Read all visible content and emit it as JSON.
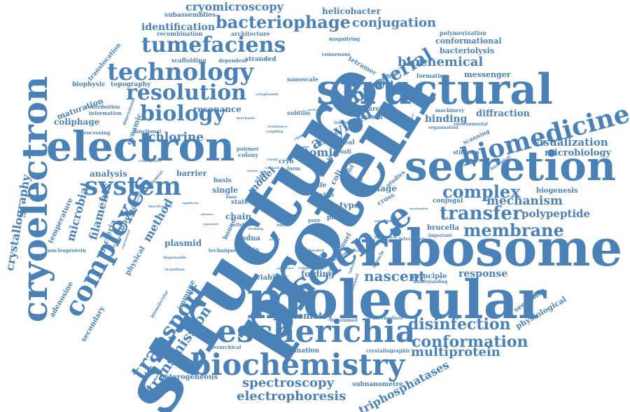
{
  "color": "#4a82b8",
  "words": [
    {
      "text": "structure",
      "weight": 100,
      "orientation": "rotated"
    },
    {
      "text": "protein",
      "weight": 98,
      "orientation": "rotated"
    },
    {
      "text": "molecular",
      "weight": 88,
      "orientation": "horizontal"
    },
    {
      "text": "ribosome",
      "weight": 84,
      "orientation": "horizontal"
    },
    {
      "text": "structural",
      "weight": 70,
      "orientation": "horizontal"
    },
    {
      "text": "secretion",
      "weight": 68,
      "orientation": "horizontal"
    },
    {
      "text": "electron",
      "weight": 66,
      "orientation": "horizontal"
    },
    {
      "text": "science",
      "weight": 62,
      "orientation": "rotated"
    },
    {
      "text": "cryoelectron",
      "weight": 60,
      "orientation": "vertical"
    },
    {
      "text": "escherichia",
      "weight": 52,
      "orientation": "horizontal"
    },
    {
      "text": "biochemistry",
      "weight": 50,
      "orientation": "horizontal"
    },
    {
      "text": "biomedicine",
      "weight": 46,
      "orientation": "rotated"
    },
    {
      "text": "complexes",
      "weight": 44,
      "orientation": "rotated"
    },
    {
      "text": "system",
      "weight": 42,
      "orientation": "horizontal"
    },
    {
      "text": "technology",
      "weight": 40,
      "orientation": "horizontal"
    },
    {
      "text": "tumefaciens",
      "weight": 36,
      "orientation": "horizontal"
    },
    {
      "text": "resolution",
      "weight": 36,
      "orientation": "horizontal"
    },
    {
      "text": "transport",
      "weight": 34,
      "orientation": "rotated"
    },
    {
      "text": "biology",
      "weight": 34,
      "orientation": "horizontal"
    },
    {
      "text": "bacteriophage",
      "weight": 30,
      "orientation": "horizontal"
    },
    {
      "text": "transfer",
      "weight": 30,
      "orientation": "horizontal"
    },
    {
      "text": "membrane",
      "weight": 28,
      "orientation": "horizontal"
    },
    {
      "text": "bacterial",
      "weight": 28,
      "orientation": "rotated"
    },
    {
      "text": "complex",
      "weight": 26,
      "orientation": "horizontal"
    },
    {
      "text": "amyloid",
      "weight": 24,
      "orientation": "rotated"
    },
    {
      "text": "conformation",
      "weight": 24,
      "orientation": "horizontal"
    },
    {
      "text": "disinfection",
      "weight": 22,
      "orientation": "horizontal"
    },
    {
      "text": "nascent",
      "weight": 22,
      "orientation": "horizontal"
    },
    {
      "text": "transmission",
      "weight": 22,
      "orientation": "rotated"
    },
    {
      "text": "spectroscopy",
      "weight": 20,
      "orientation": "horizontal"
    },
    {
      "text": "electrophoresis",
      "weight": 20,
      "orientation": "horizontal"
    },
    {
      "text": "multiprotein",
      "weight": 20,
      "orientation": "horizontal"
    },
    {
      "text": "biochemical",
      "weight": 20,
      "orientation": "horizontal"
    },
    {
      "text": "conjugation",
      "weight": 20,
      "orientation": "horizontal"
    },
    {
      "text": "cryomicroscopy",
      "weight": 18,
      "orientation": "horizontal"
    },
    {
      "text": "chlorine",
      "weight": 18,
      "orientation": "horizontal"
    },
    {
      "text": "mechanism",
      "weight": 18,
      "orientation": "horizontal"
    },
    {
      "text": "polypeptide",
      "weight": 16,
      "orientation": "horizontal"
    },
    {
      "text": "visualization",
      "weight": 16,
      "orientation": "horizontal"
    },
    {
      "text": "microbiology",
      "weight": 14,
      "orientation": "horizontal"
    },
    {
      "text": "diffraction",
      "weight": 14,
      "orientation": "horizontal"
    },
    {
      "text": "binding",
      "weight": 14,
      "orientation": "horizontal"
    },
    {
      "text": "identification",
      "weight": 14,
      "orientation": "horizontal"
    },
    {
      "text": "cytometry",
      "weight": 14,
      "orientation": "horizontal"
    },
    {
      "text": "response",
      "weight": 14,
      "orientation": "horizontal"
    },
    {
      "text": "method",
      "weight": 16,
      "orientation": "rotated"
    },
    {
      "text": "filaments",
      "weight": 16,
      "orientation": "rotated"
    },
    {
      "text": "microbial",
      "weight": 16,
      "orientation": "rotated"
    },
    {
      "text": "crystallography",
      "weight": 16,
      "orientation": "vertical"
    },
    {
      "text": "atomic",
      "weight": 16,
      "orientation": "horizontal"
    },
    {
      "text": "triphosphatases",
      "weight": 16,
      "orientation": "rotated"
    },
    {
      "text": "heterogeneous",
      "weight": 10,
      "orientation": "horizontal"
    },
    {
      "text": "helicobacter",
      "weight": 12,
      "orientation": "horizontal"
    },
    {
      "text": "conformational",
      "weight": 11,
      "orientation": "horizontal"
    },
    {
      "text": "bacteriolysis",
      "weight": 11,
      "orientation": "horizontal"
    },
    {
      "text": "messenger",
      "weight": 11,
      "orientation": "horizontal"
    },
    {
      "text": "biogenesis",
      "weight": 10,
      "orientation": "horizontal"
    },
    {
      "text": "brucella",
      "weight": 10,
      "orientation": "horizontal"
    },
    {
      "text": "coliphage",
      "weight": 12,
      "orientation": "horizontal"
    },
    {
      "text": "maturation",
      "weight": 12,
      "orientation": "rotated"
    },
    {
      "text": "resonance",
      "weight": 12,
      "orientation": "horizontal"
    },
    {
      "text": "analysis",
      "weight": 12,
      "orientation": "horizontal"
    },
    {
      "text": "barrier",
      "weight": 11,
      "orientation": "horizontal"
    },
    {
      "text": "plasmid",
      "weight": 12,
      "orientation": "horizontal"
    },
    {
      "text": "folding",
      "weight": 12,
      "orientation": "horizontal"
    },
    {
      "text": "viability",
      "weight": 10,
      "orientation": "horizontal"
    },
    {
      "text": "phage",
      "weight": 12,
      "orientation": "horizontal"
    },
    {
      "text": "type",
      "weight": 12,
      "orientation": "horizontal"
    },
    {
      "text": "model",
      "weight": 12,
      "orientation": "rotated"
    },
    {
      "text": "chain",
      "weight": 12,
      "orientation": "horizontal"
    },
    {
      "text": "single",
      "weight": 11,
      "orientation": "horizontal"
    },
    {
      "text": "ssdna",
      "weight": 10,
      "orientation": "horizontal"
    },
    {
      "text": "combination",
      "weight": 9,
      "orientation": "horizontal"
    },
    {
      "text": "subnanometre",
      "weight": 9,
      "orientation": "horizontal"
    },
    {
      "text": "principle",
      "weight": 10,
      "orientation": "horizontal"
    },
    {
      "text": "sequence",
      "weight": 10,
      "orientation": "rotated"
    },
    {
      "text": "physiological",
      "weight": 11,
      "orientation": "rotated"
    },
    {
      "text": "immune",
      "weight": 10,
      "orientation": "rotated"
    },
    {
      "text": "bacteria",
      "weight": 11,
      "orientation": "rotated"
    },
    {
      "text": "nuclear",
      "weight": 11,
      "orientation": "rotated"
    },
    {
      "text": "physical",
      "weight": 10,
      "orientation": "rotated"
    },
    {
      "text": "adenosine",
      "weight": 10,
      "orientation": "rotated"
    },
    {
      "text": "secondary",
      "weight": 10,
      "orientation": "rotated"
    },
    {
      "text": "temperature",
      "weight": 10,
      "orientation": "rotated"
    },
    {
      "text": "dynamic",
      "weight": 10,
      "orientation": "rotated"
    },
    {
      "text": "translocation",
      "weight": 9,
      "orientation": "rotated"
    },
    {
      "text": "tetramer",
      "weight": 9,
      "orientation": "rotated"
    },
    {
      "text": "magnetic",
      "weight": 9,
      "orientation": "rotated"
    },
    {
      "text": "subassemblies",
      "weight": 9,
      "orientation": "horizontal"
    },
    {
      "text": "recombination",
      "weight": 8,
      "orientation": "horizontal"
    },
    {
      "text": "architecture",
      "weight": 8,
      "orientation": "horizontal"
    },
    {
      "text": "scaffolding",
      "weight": 8,
      "orientation": "horizontal"
    },
    {
      "text": "stranded",
      "weight": 9,
      "orientation": "horizontal"
    },
    {
      "text": "nanoscale",
      "weight": 8,
      "orientation": "horizontal"
    },
    {
      "text": "polymerization",
      "weight": 8,
      "orientation": "horizontal"
    },
    {
      "text": "formation",
      "weight": 8,
      "orientation": "horizontal"
    },
    {
      "text": "biophysic",
      "weight": 9,
      "orientation": "horizontal"
    },
    {
      "text": "topography",
      "weight": 9,
      "orientation": "horizontal"
    },
    {
      "text": "research",
      "weight": 9,
      "orientation": "horizontal"
    },
    {
      "text": "cryoem",
      "weight": 9,
      "orientation": "horizontal"
    },
    {
      "text": "human",
      "weight": 9,
      "orientation": "rotated"
    },
    {
      "text": "reveal",
      "weight": 9,
      "orientation": "horizontal"
    },
    {
      "text": "result",
      "weight": 8,
      "orientation": "horizontal"
    },
    {
      "text": "scanning",
      "weight": 8,
      "orientation": "rotated"
    },
    {
      "text": "stiffness",
      "weight": 8,
      "orientation": "horizontal"
    },
    {
      "text": "conjugal",
      "weight": 9,
      "orientation": "horizontal"
    },
    {
      "text": "cycle",
      "weight": 8,
      "orientation": "horizontal"
    },
    {
      "text": "basis",
      "weight": 9,
      "orientation": "horizontal"
    },
    {
      "text": "state",
      "weight": 9,
      "orientation": "horizontal"
    },
    {
      "text": "domain",
      "weight": 8,
      "orientation": "horizontal"
    },
    {
      "text": "presence",
      "weight": 9,
      "orientation": "rotated"
    },
    {
      "text": "tunnel",
      "weight": 9,
      "orientation": "rotated"
    },
    {
      "text": "subtilis",
      "weight": 8,
      "orientation": "horizontal"
    },
    {
      "text": "colony",
      "weight": 8,
      "orientation": "horizontal"
    },
    {
      "text": "polymer",
      "weight": 7,
      "orientation": "horizontal"
    },
    {
      "text": "information",
      "weight": 7,
      "orientation": "horizontal"
    },
    {
      "text": "contribution",
      "weight": 7,
      "orientation": "horizontal"
    },
    {
      "text": "processing",
      "weight": 7,
      "orientation": "horizontal"
    },
    {
      "text": "consensus",
      "weight": 7,
      "orientation": "horizontal"
    },
    {
      "text": "magnifying",
      "weight": 7,
      "orientation": "horizontal"
    },
    {
      "text": "dependent",
      "weight": 7,
      "orientation": "horizontal"
    },
    {
      "text": "machinery",
      "weight": 7,
      "orientation": "horizontal"
    },
    {
      "text": "environmental",
      "weight": 6,
      "orientation": "horizontal"
    },
    {
      "text": "organisation",
      "weight": 6,
      "orientation": "horizontal"
    },
    {
      "text": "functional",
      "weight": 7,
      "orientation": "horizontal"
    },
    {
      "text": "nucleoprotein",
      "weight": 7,
      "orientation": "horizontal"
    },
    {
      "text": "technique",
      "weight": 7,
      "orientation": "horizontal"
    },
    {
      "text": "hierarchical",
      "weight": 7,
      "orientation": "horizontal"
    },
    {
      "text": "crystallographic",
      "weight": 7,
      "orientation": "horizontal"
    },
    {
      "text": "protomers",
      "weight": 7,
      "orientation": "horizontal"
    },
    {
      "text": "intermediate",
      "weight": 6,
      "orientation": "horizontal"
    },
    {
      "text": "understanding",
      "weight": 6,
      "orientation": "horizontal"
    },
    {
      "text": "important",
      "weight": 6,
      "orientation": "horizontal"
    },
    {
      "text": "interaction",
      "weight": 6,
      "orientation": "horizontal"
    },
    {
      "text": "approach",
      "weight": 6,
      "orientation": "horizontal"
    },
    {
      "text": "determined",
      "weight": 6,
      "orientation": "horizontal"
    },
    {
      "text": "pilus",
      "weight": 9,
      "orientation": "horizontal"
    },
    {
      "text": "pore",
      "weight": 7,
      "orientation": "horizontal"
    },
    {
      "text": "fibril",
      "weight": 7,
      "orientation": "horizontal"
    },
    {
      "text": "virb",
      "weight": 9,
      "orientation": "horizontal"
    },
    {
      "text": "life",
      "weight": 9,
      "orientation": "horizontal"
    },
    {
      "text": "cryo",
      "weight": 9,
      "orientation": "horizontal"
    },
    {
      "text": "core",
      "weight": 9,
      "orientation": "rotated"
    },
    {
      "text": "cell",
      "weight": 9,
      "orientation": "rotated"
    },
    {
      "text": "coli",
      "weight": 11,
      "orientation": "rotated"
    },
    {
      "text": "virb",
      "weight": 10,
      "orientation": "rotated"
    },
    {
      "text": "bound",
      "weight": 9,
      "orientation": "rotated"
    },
    {
      "text": "form",
      "weight": 7,
      "orientation": "horizontal"
    },
    {
      "text": "outer",
      "weight": 6,
      "orientation": "horizontal"
    },
    {
      "text": "cross",
      "weight": 9,
      "orientation": "rotated"
    },
    {
      "text": "studies",
      "weight": 8,
      "orientation": "rotated"
    },
    {
      "text": "solid",
      "weight": 8,
      "orientation": "rotated"
    },
    {
      "text": "muscle",
      "weight": 7,
      "orientation": "rotated"
    },
    {
      "text": "channel",
      "weight": 6,
      "orientation": "rotated"
    },
    {
      "text": "centre",
      "weight": 6,
      "orientation": "rotated"
    },
    {
      "text": "treatment",
      "weight": 6,
      "orientation": "horizontal"
    },
    {
      "text": "biological",
      "weight": 6,
      "orientation": "rotated"
    },
    {
      "text": "element",
      "weight": 6,
      "orientation": "rotated"
    },
    {
      "text": "conjugative",
      "weight": 5,
      "orientation": "horizontal"
    },
    {
      "text": "inactivation",
      "weight": 5,
      "orientation": "horizontal"
    },
    {
      "text": "transition",
      "weight": 5,
      "orientation": "horizontal"
    },
    {
      "text": "dispensable",
      "weight": 5,
      "orientation": "horizontal"
    },
    {
      "text": "biomolecular",
      "weight": 6,
      "orientation": "rotated"
    },
    {
      "text": "biocomplexes",
      "weight": 5,
      "orientation": "rotated"
    },
    {
      "text": "dimensional",
      "weight": 6,
      "orientation": "rotated"
    },
    {
      "text": "mechanic",
      "weight": 5,
      "orientation": "horizontal"
    },
    {
      "text": "cytoplasmic",
      "weight": 5,
      "orientation": "horizontal"
    },
    {
      "text": "coupling",
      "weight": 5,
      "orientation": "horizontal"
    },
    {
      "text": "resistance",
      "weight": 5,
      "orientation": "horizontal"
    },
    {
      "text": "count",
      "weight": 5,
      "orientation": "horizontal"
    },
    {
      "text": "contact",
      "weight": 5,
      "orientation": "horizontal"
    },
    {
      "text": "various",
      "weight": 4,
      "orientation": "horizontal"
    },
    {
      "text": "cellular",
      "weight": 6,
      "orientation": "horizontal"
    },
    {
      "text": "looking",
      "weight": 5,
      "orientation": "horizontal"
    },
    {
      "text": "base",
      "weight": 6,
      "orientation": "horizontal"
    },
    {
      "text": "detailed",
      "weight": 5,
      "orientation": "horizontal"
    },
    {
      "text": "sample",
      "weight": 5,
      "orientation": "horizontal"
    },
    {
      "text": "absence",
      "weight": 5,
      "orientation": "horizontal"
    },
    {
      "text": "assemble",
      "weight": 5,
      "orientation": "horizontal"
    },
    {
      "text": "mechanistic",
      "weight": 4,
      "orientation": "horizontal"
    },
    {
      "text": "component",
      "weight": 5,
      "orientation": "horizontal"
    },
    {
      "text": "properties",
      "weight": 4,
      "orientation": "horizontal"
    },
    {
      "text": "significant",
      "weight": 4,
      "orientation": "horizontal"
    },
    {
      "text": "archetypal",
      "weight": 4,
      "orientation": "horizontal"
    },
    {
      "text": "chimeric",
      "weight": 5,
      "orientation": "rotated"
    },
    {
      "text": "flexible",
      "weight": 4,
      "orientation": "horizontal"
    },
    {
      "text": "organized",
      "weight": 4,
      "orientation": "horizontal"
    },
    {
      "text": "advance",
      "weight": 4,
      "orientation": "horizontal"
    },
    {
      "text": "susceptibility",
      "weight": 4,
      "orientation": "rotated"
    },
    {
      "text": "experimental",
      "weight": 4,
      "orientation": "rotated"
    },
    {
      "text": "helical",
      "weight": 4,
      "orientation": "horizontal"
    },
    {
      "text": "exposure",
      "weight": 4,
      "orientation": "rotated"
    },
    {
      "text": "tubule",
      "weight": 5,
      "orientation": "rotated"
    }
  ]
}
